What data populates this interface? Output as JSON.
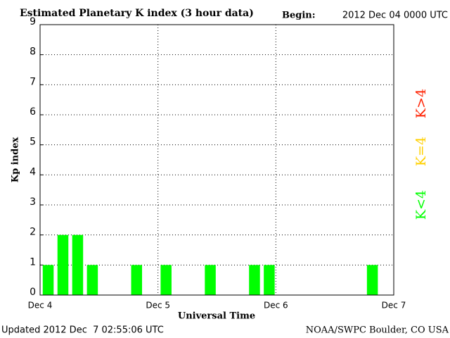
{
  "chart_data": {
    "type": "bar",
    "title": "Estimated Planetary K index (3 hour data)",
    "begin_label": "Begin:",
    "begin": "2012 Dec 04 0000 UTC",
    "updated": "Updated 2012 Dec  7 02:55:06 UTC",
    "source": "NOAA/SWPC Boulder, CO USA",
    "x_label": "Universal Time",
    "y_label": "Kp index",
    "x": [
      0,
      3,
      6,
      9,
      12,
      15,
      18,
      21,
      24,
      27,
      30,
      33,
      36,
      39,
      42,
      45,
      48,
      51,
      54,
      57,
      60,
      63,
      66,
      69
    ],
    "values": [
      1,
      2,
      2,
      1,
      0,
      0,
      1,
      0,
      1,
      0,
      0,
      1,
      0,
      0,
      1,
      1,
      0,
      0,
      0,
      0,
      0,
      0,
      1,
      0
    ],
    "color": "#00ff00",
    "xlim": [
      0,
      72
    ],
    "xticks": [
      {
        "value": 0,
        "label": "Dec 4"
      },
      {
        "value": 24,
        "label": "Dec 5"
      },
      {
        "value": 48,
        "label": "Dec 6"
      },
      {
        "value": 72,
        "label": "Dec 7"
      }
    ],
    "ylim": [
      0,
      9
    ],
    "yticks": [
      0,
      1,
      2,
      3,
      4,
      5,
      6,
      7,
      8,
      9
    ],
    "grid": true,
    "legend": [
      {
        "label": "K>4",
        "color": "#ff2000"
      },
      {
        "label": "K=4",
        "color": "#ffd000"
      },
      {
        "label": "K<4",
        "color": "#00ff00"
      }
    ]
  }
}
